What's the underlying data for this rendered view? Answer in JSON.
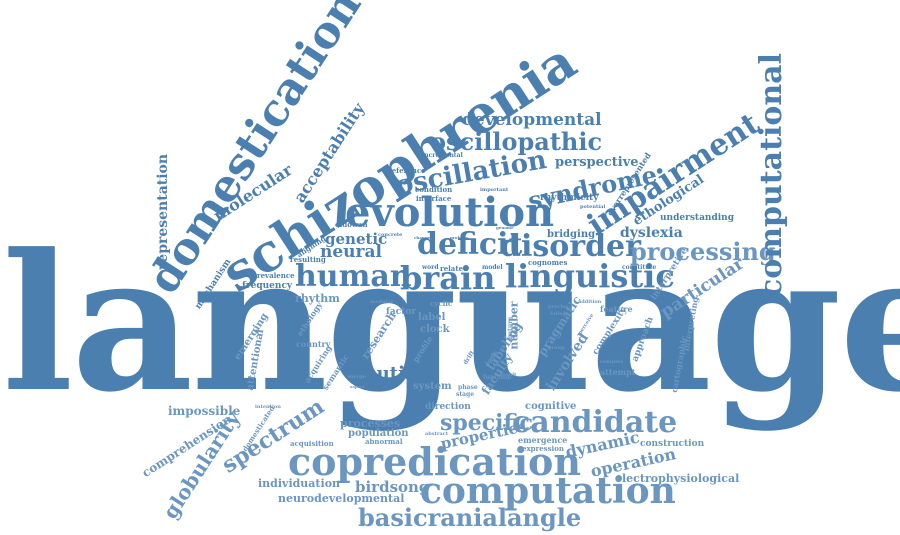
{
  "colors": {
    "primary": "#4a7fb0",
    "secondary": "#6a96c0",
    "light": "#8aaed0",
    "background": "#ffffff"
  },
  "words": [
    {
      "text": "language",
      "weight": 100
    },
    {
      "text": "schizophrenia",
      "weight": 42
    },
    {
      "text": "domestication",
      "weight": 36
    },
    {
      "text": "evolution",
      "weight": 30
    },
    {
      "text": "copredication",
      "weight": 26
    },
    {
      "text": "computation",
      "weight": 25
    },
    {
      "text": "human",
      "weight": 22
    },
    {
      "text": "brain",
      "weight": 22
    },
    {
      "text": "linguistic",
      "weight": 22
    },
    {
      "text": "deficit",
      "weight": 20
    },
    {
      "text": "disorder",
      "weight": 20
    },
    {
      "text": "processing",
      "weight": 18
    },
    {
      "text": "impairment",
      "weight": 20
    },
    {
      "text": "computational",
      "weight": 20
    },
    {
      "text": "candidate",
      "weight": 18
    },
    {
      "text": "basicranialangle",
      "weight": 16
    },
    {
      "text": "oscillation",
      "weight": 18
    },
    {
      "text": "oscillopathic",
      "weight": 16
    },
    {
      "text": "syndrome",
      "weight": 16
    },
    {
      "text": "spectrum",
      "weight": 14
    },
    {
      "text": "globularity",
      "weight": 13
    },
    {
      "text": "specific",
      "weight": 14
    },
    {
      "text": "autism",
      "weight": 12
    },
    {
      "text": "developmental",
      "weight": 11
    },
    {
      "text": "particular",
      "weight": 11
    },
    {
      "text": "neural",
      "weight": 11
    },
    {
      "text": "genetic",
      "weight": 10
    },
    {
      "text": "molecular",
      "weight": 10
    },
    {
      "text": "acceptability",
      "weight": 10
    },
    {
      "text": "representation",
      "weight": 9
    },
    {
      "text": "operation",
      "weight": 10
    },
    {
      "text": "dynamic",
      "weight": 10
    },
    {
      "text": "properties",
      "weight": 9
    },
    {
      "text": "birdsong",
      "weight": 9
    },
    {
      "text": "dyslexia",
      "weight": 9
    },
    {
      "text": "perspective",
      "weight": 8
    },
    {
      "text": "ethological",
      "weight": 8
    },
    {
      "text": "comprehension",
      "weight": 7
    },
    {
      "text": "impossible",
      "weight": 7
    },
    {
      "text": "neurodevelopmental",
      "weight": 7
    },
    {
      "text": "individuation",
      "weight": 7
    },
    {
      "text": "electrophysiological",
      "weight": 7
    },
    {
      "text": "processes",
      "weight": 7
    },
    {
      "text": "population",
      "weight": 6
    },
    {
      "text": "cognitive",
      "weight": 6
    },
    {
      "text": "involved",
      "weight": 7
    },
    {
      "text": "pragmatic",
      "weight": 6
    },
    {
      "text": "labeling",
      "weight": 6
    },
    {
      "text": "number",
      "weight": 6
    },
    {
      "text": "faculty",
      "weight": 6
    },
    {
      "text": "research",
      "weight": 6
    },
    {
      "text": "rhythm",
      "weight": 6
    },
    {
      "text": "mechanism",
      "weight": 5
    },
    {
      "text": "frequency",
      "weight": 5
    },
    {
      "text": "attentional",
      "weight": 5
    },
    {
      "text": "emerging",
      "weight": 5
    },
    {
      "text": "bridging",
      "weight": 5
    },
    {
      "text": "understanding",
      "weight": 5
    },
    {
      "text": "interpretive",
      "weight": 5
    },
    {
      "text": "approach",
      "weight": 5
    },
    {
      "text": "complexity",
      "weight": 5
    },
    {
      "text": "construction",
      "weight": 5
    },
    {
      "text": "cartographic",
      "weight": 4
    },
    {
      "text": "interpreting",
      "weight": 4
    },
    {
      "text": "rhythmicity",
      "weight": 5
    },
    {
      "text": "overrepresented",
      "weight": 4
    },
    {
      "text": "system",
      "weight": 5
    },
    {
      "text": "direction",
      "weight": 5
    },
    {
      "text": "acquisition",
      "weight": 4
    },
    {
      "text": "domesticated",
      "weight": 4
    },
    {
      "text": "label",
      "weight": 5
    },
    {
      "text": "clock",
      "weight": 5
    },
    {
      "text": "factor",
      "weight": 5
    },
    {
      "text": "profile",
      "weight": 4
    },
    {
      "text": "cyclic",
      "weight": 4
    },
    {
      "text": "attempt",
      "weight": 4
    },
    {
      "text": "feature",
      "weight": 4
    },
    {
      "text": "emergence",
      "weight": 4
    },
    {
      "text": "expression",
      "weight": 4
    },
    {
      "text": "abnormal",
      "weight": 4
    },
    {
      "text": "country",
      "weight": 4
    },
    {
      "text": "acquiring",
      "weight": 4
    },
    {
      "text": "semantic",
      "weight": 4
    },
    {
      "text": "ethology",
      "weight": 4
    },
    {
      "text": "resulting",
      "weight": 4
    },
    {
      "text": "prevalence",
      "weight": 4
    },
    {
      "text": "aligning",
      "weight": 4
    },
    {
      "text": "oldowan",
      "weight": 4
    },
    {
      "text": "cognomes",
      "weight": 4
    },
    {
      "text": "related",
      "weight": 4
    },
    {
      "text": "constitute",
      "weight": 4
    },
    {
      "text": "condition",
      "weight": 4
    },
    {
      "text": "interface",
      "weight": 4
    },
    {
      "text": "reference",
      "weight": 4
    },
    {
      "text": "incremental",
      "weight": 3
    },
    {
      "text": "word",
      "weight": 3
    },
    {
      "text": "model",
      "weight": 3
    },
    {
      "text": "concrete",
      "weight": 3
    },
    {
      "text": "stage",
      "weight": 3
    },
    {
      "text": "phase",
      "weight": 3
    },
    {
      "text": "nature",
      "weight": 3
    },
    {
      "text": "function",
      "weight": 3
    },
    {
      "text": "result",
      "weight": 3
    },
    {
      "text": "group",
      "weight": 3
    },
    {
      "text": "precise",
      "weight": 3
    },
    {
      "text": "failed",
      "weight": 3
    },
    {
      "text": "addition",
      "weight": 3
    },
    {
      "text": "important",
      "weight": 3
    },
    {
      "text": "potential",
      "weight": 3
    },
    {
      "text": "perceive",
      "weight": 3
    },
    {
      "text": "complex",
      "weight": 3
    },
    {
      "text": "merge",
      "weight": 3
    },
    {
      "text": "aspect",
      "weight": 3
    },
    {
      "text": "abstract",
      "weight": 3
    },
    {
      "text": "intention",
      "weight": 3
    },
    {
      "text": "modular",
      "weight": 3
    },
    {
      "text": "drift",
      "weight": 3
    },
    {
      "text": "logic",
      "weight": 3
    },
    {
      "text": "change",
      "weight": 3
    },
    {
      "text": "problem",
      "weight": 3
    },
    {
      "text": "genome",
      "weight": 3
    }
  ]
}
